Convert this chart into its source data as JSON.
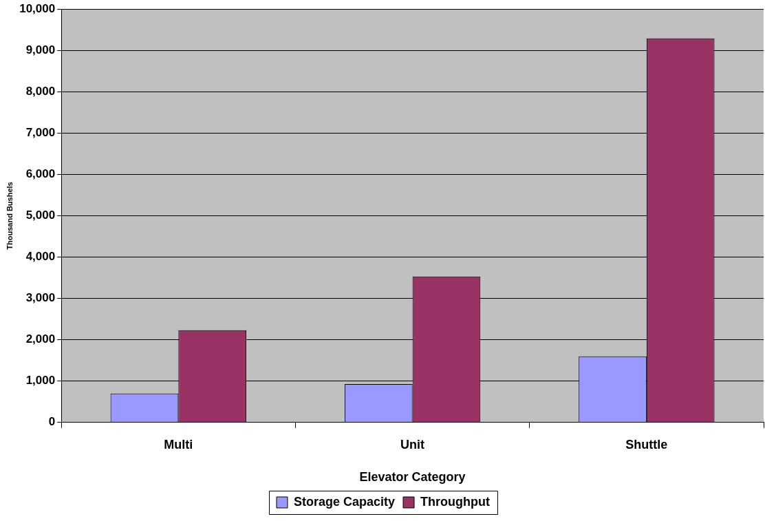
{
  "chart_data": {
    "type": "bar",
    "xlabel": "Elevator Category",
    "ylabel": "Thousand Bushels",
    "categories": [
      "Multi",
      "Unit",
      "Shuttle"
    ],
    "series": [
      {
        "name": "Storage Capacity",
        "color": "#9999ff",
        "values": [
          700,
          930,
          1600
        ]
      },
      {
        "name": "Throughput",
        "color": "#993366",
        "values": [
          2230,
          3530,
          9290
        ]
      }
    ],
    "ylim": [
      0,
      10000
    ],
    "yticks": [
      0,
      {
        "value": 1000,
        "label": "1,000"
      },
      {
        "value": 2000,
        "label": "2,000"
      },
      {
        "value": 3000,
        "label": "3,000"
      },
      {
        "value": 4000,
        "label": "4,000"
      },
      {
        "value": 5000,
        "label": "5,000"
      },
      {
        "value": 6000,
        "label": "6,000"
      },
      {
        "value": 7000,
        "label": "7,000"
      },
      {
        "value": 8000,
        "label": "8,000"
      },
      {
        "value": 9000,
        "label": "9,000"
      },
      {
        "value": 10000,
        "label": "10,000"
      }
    ],
    "grid": "y",
    "legend": "bottom"
  }
}
